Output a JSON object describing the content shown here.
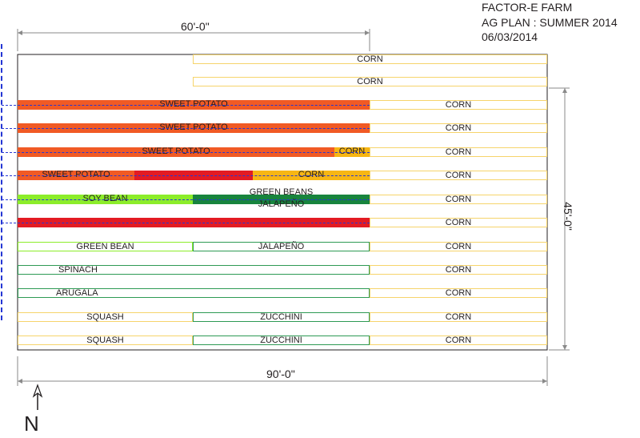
{
  "title": {
    "line1": "FACTOR-E FARM",
    "line2": "AG PLAN  :  SUMMER 2014",
    "line3": "06/03/2014"
  },
  "dimensions": {
    "top": "60'-0\"",
    "bottom": "90'-0\"",
    "right": "45'-0\""
  },
  "north_label": "N",
  "colors": {
    "sweet_potato": "#f15a24",
    "pepper": "#e31b23",
    "corn_fill": "#f7b614",
    "soy_bean": "#8ced2a",
    "green_beans": "#17843d",
    "corn_outline": "#f6d46b",
    "bed_outline": "#2e9a54",
    "irrigation": "#2436d4"
  },
  "beds": {
    "r1": {
      "corn": "CORN"
    },
    "r2": {
      "corn": "CORN"
    },
    "r3": {
      "sweet_potato": "SWEET POTATO",
      "corn": "CORN"
    },
    "r4": {
      "sweet_potato": "SWEET POTATO",
      "corn": "CORN"
    },
    "r5": {
      "sweet_potato": "SWEET POTATO",
      "corn_short": "CORN",
      "corn": "CORN"
    },
    "r6": {
      "sweet_potato": "SWEET POTATO",
      "corn_short": "CORN",
      "corn": "CORN"
    },
    "r7": {
      "soy_bean": "SOY BEAN",
      "green_beans": "GREEN BEANS",
      "jalapeno": "JALAPEÑO",
      "corn": "CORN"
    },
    "r8": {
      "corn": "CORN"
    },
    "r9": {
      "green_bean": "GREEN BEAN",
      "jalapeno": "JALAPEÑO",
      "corn": "CORN"
    },
    "r10": {
      "spinach": "SPINACH",
      "corn": "CORN"
    },
    "r11": {
      "arugala": "ARUGALA",
      "corn": "CORN"
    },
    "r12": {
      "squash": "SQUASH",
      "zucchini": "ZUCCHINI",
      "corn": "CORN"
    },
    "r13": {
      "squash": "SQUASH",
      "zucchini": "ZUCCHINI",
      "corn": "CORN"
    }
  }
}
